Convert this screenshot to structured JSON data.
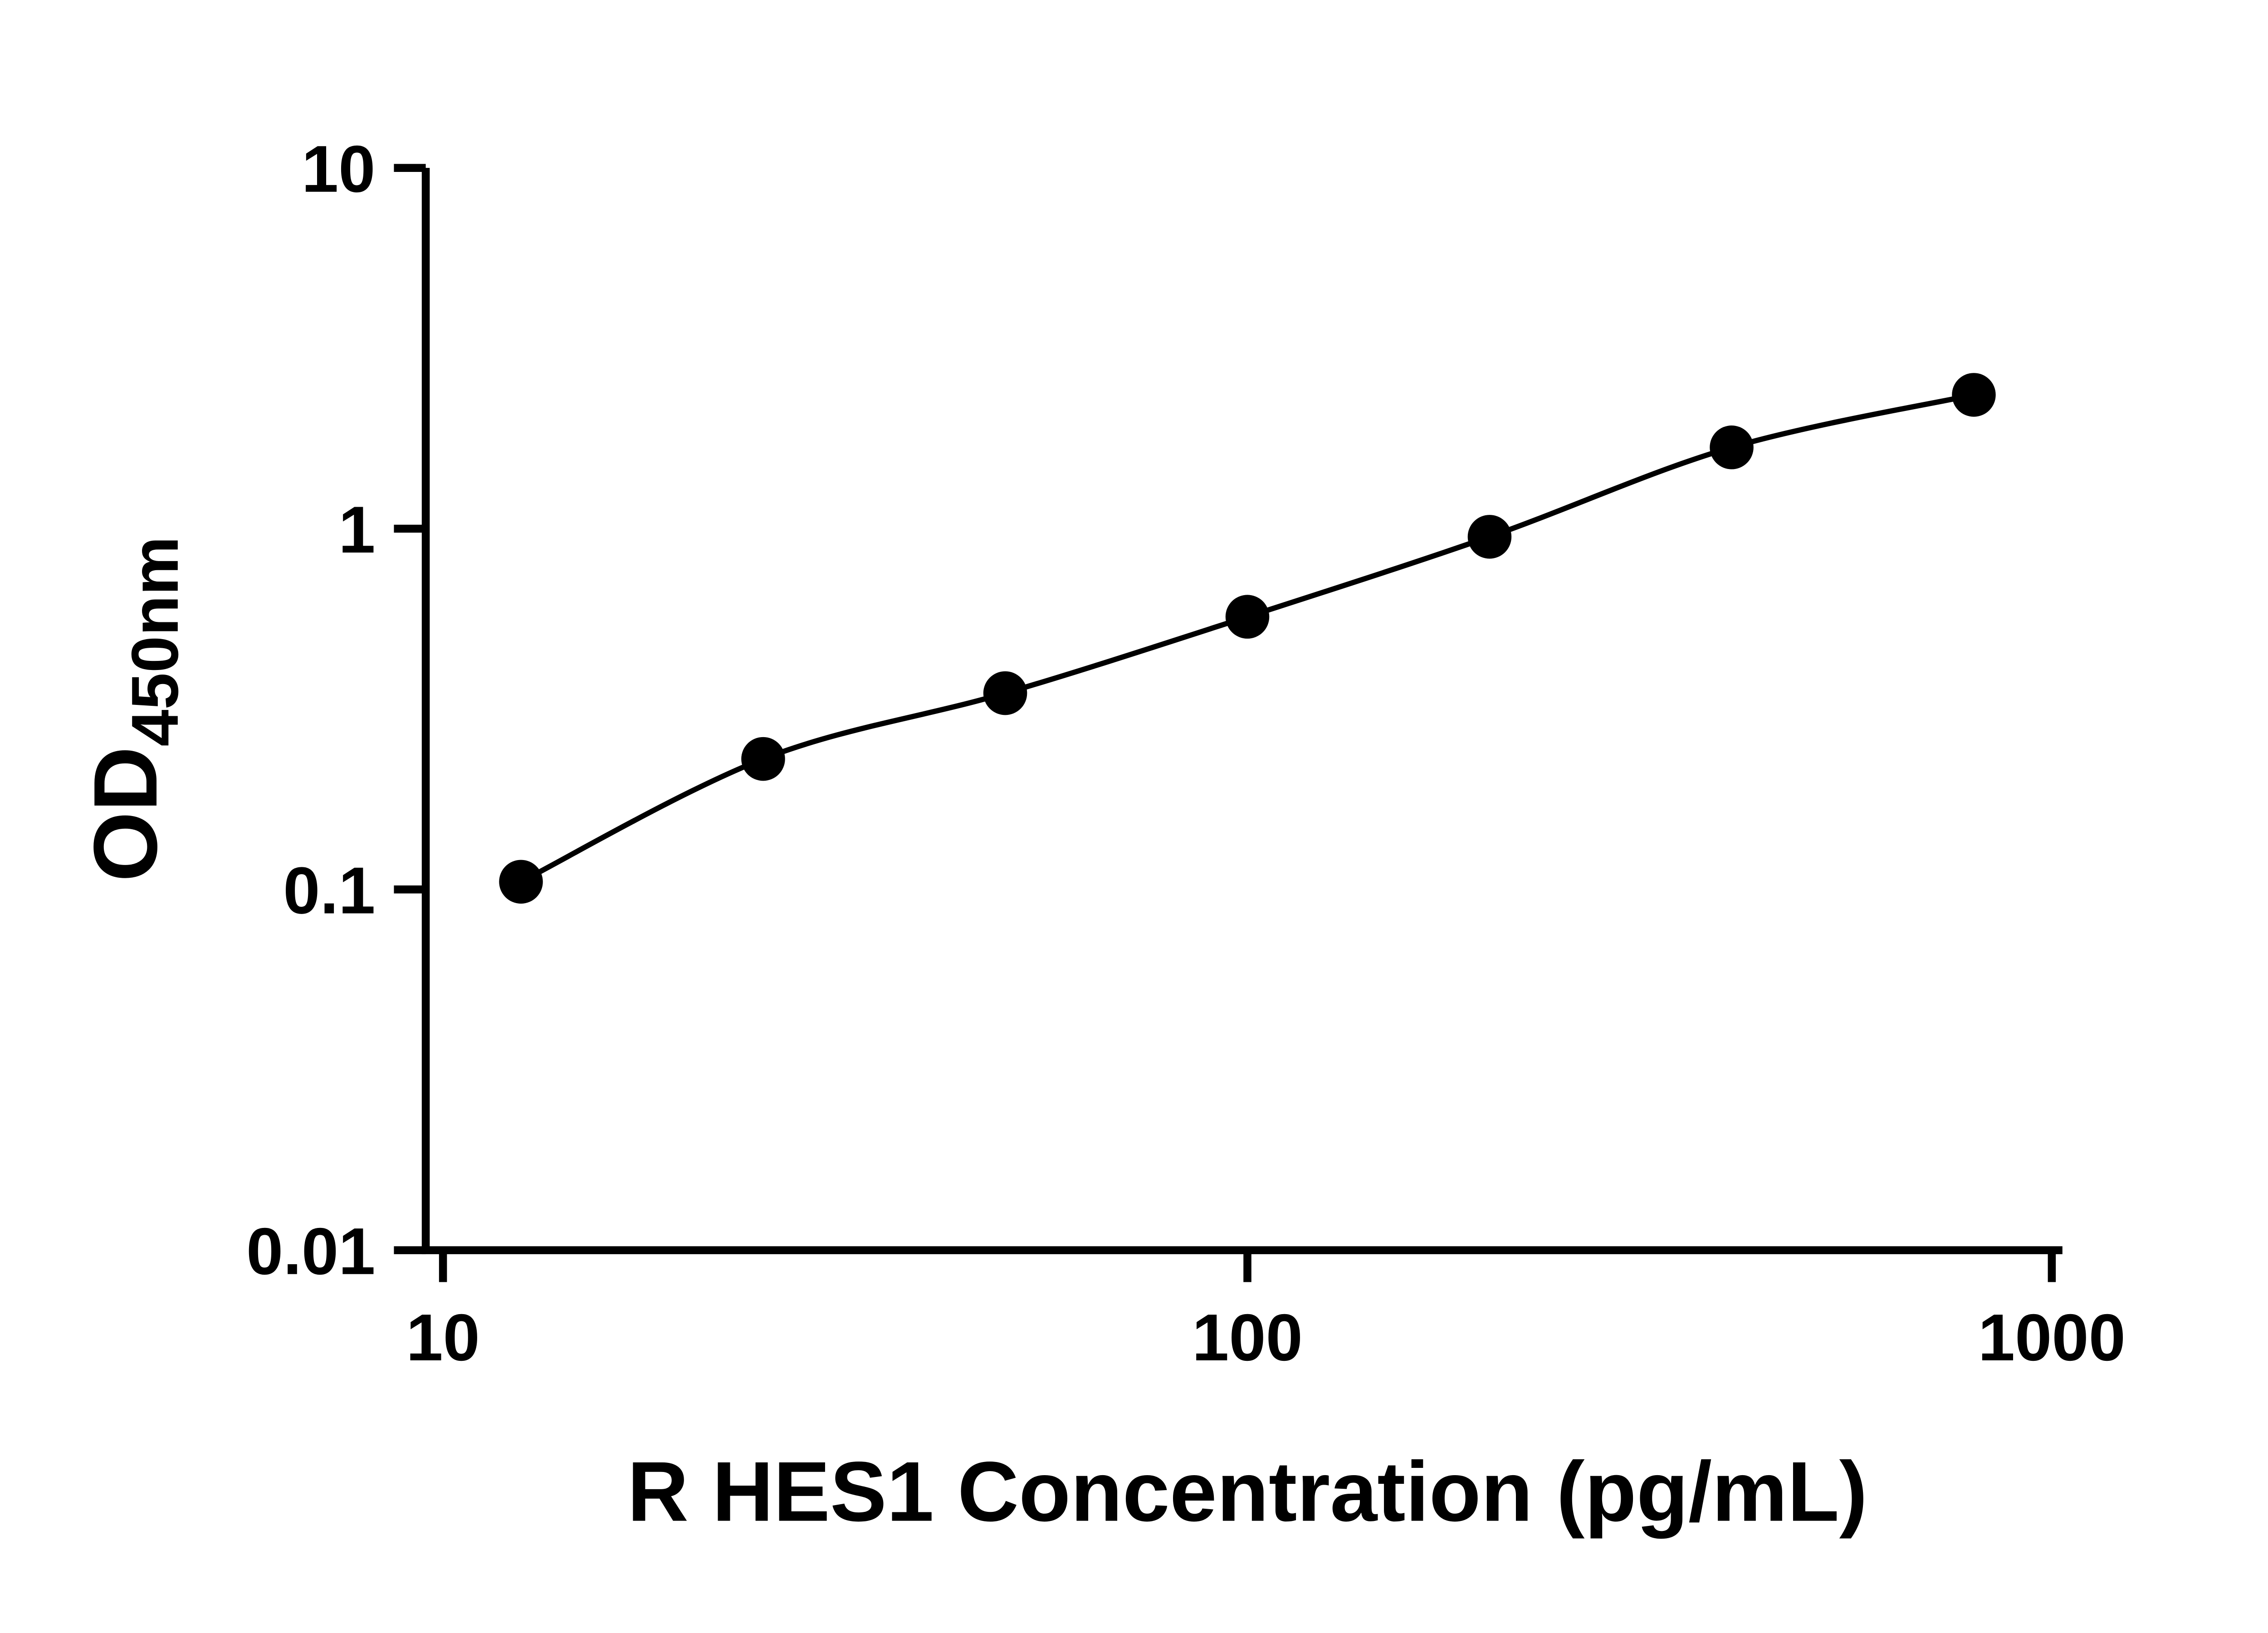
{
  "chart_data": {
    "type": "scatter",
    "title": "",
    "xlabel": "R HES1 Concentration (pg/mL)",
    "ylabel_main": "OD",
    "ylabel_sub": "450nm",
    "x_scale": "log",
    "y_scale": "log",
    "xlim": [
      10,
      1000
    ],
    "ylim": [
      0.01,
      10
    ],
    "grid": false,
    "legend": "none",
    "marker": "filled-circle",
    "marker_color": "#000000",
    "line_color": "#000000",
    "line_style": "smooth curve through points",
    "x_ticks": [
      {
        "value": 10,
        "label": "10"
      },
      {
        "value": 100,
        "label": "100"
      },
      {
        "value": 1000,
        "label": "1000"
      }
    ],
    "y_ticks": [
      {
        "value": 10,
        "label": "10"
      },
      {
        "value": 1,
        "label": "1"
      },
      {
        "value": 0.1,
        "label": "0.1"
      },
      {
        "value": 0.01,
        "label": "0.01"
      }
    ],
    "series": [
      {
        "name": "standard-curve",
        "x": [
          12.5,
          25,
          50,
          100,
          200,
          400,
          800
        ],
        "y": [
          0.105,
          0.23,
          0.35,
          0.57,
          0.95,
          1.68,
          2.35
        ]
      }
    ]
  }
}
